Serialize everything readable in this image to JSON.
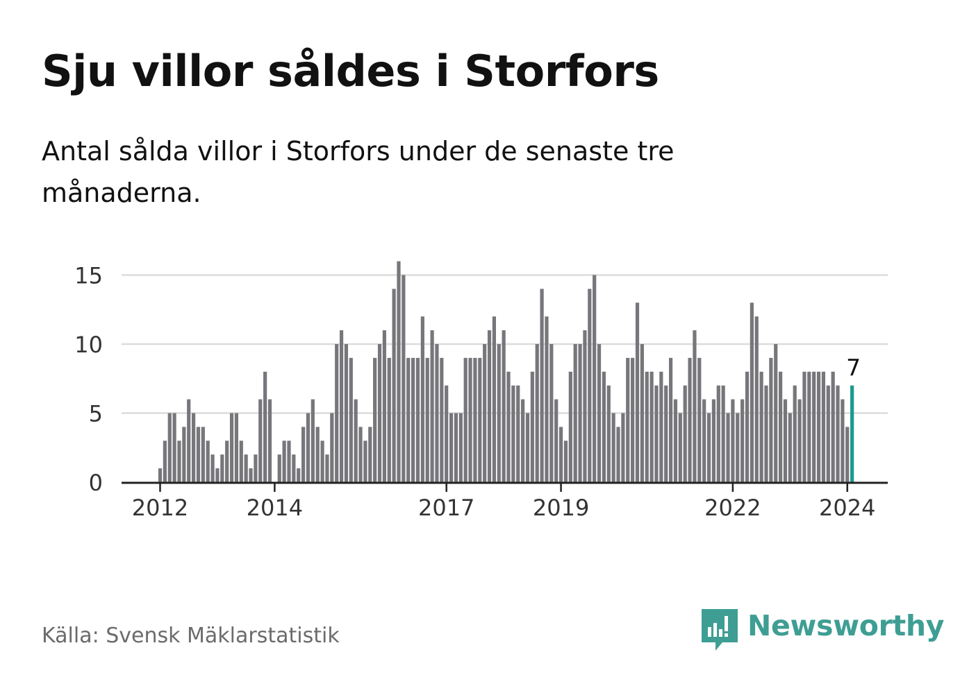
{
  "title": "Sju villor såldes i Storfors",
  "subtitle": "Antal sålda villor i Storfors under de senaste tre månaderna.",
  "source": "Källa: Svensk Mäklarstatistik",
  "brand": {
    "name": "Newsworthy",
    "icon": "newsworthy-logo-icon",
    "color": "#3e9e93"
  },
  "colors": {
    "bar": "#77767b",
    "highlight": "#1d9a8c",
    "grid": "#dcdcdc",
    "axis": "#222222"
  },
  "chart_data": {
    "type": "bar",
    "title": "Sju villor såldes i Storfors",
    "xlabel": "",
    "ylabel": "",
    "ylim": [
      0,
      16
    ],
    "yticks": [
      0,
      5,
      10,
      15
    ],
    "xticks": [
      {
        "label": "2012",
        "index": 0
      },
      {
        "label": "2014",
        "index": 24
      },
      {
        "label": "2017",
        "index": 60
      },
      {
        "label": "2019",
        "index": 84
      },
      {
        "label": "2022",
        "index": 120
      },
      {
        "label": "2024",
        "index": 144
      }
    ],
    "first_period": "2012-01",
    "values": [
      1,
      3,
      5,
      5,
      3,
      4,
      6,
      5,
      4,
      4,
      3,
      2,
      1,
      2,
      3,
      5,
      5,
      3,
      2,
      1,
      2,
      6,
      8,
      6,
      0,
      2,
      3,
      3,
      2,
      1,
      4,
      5,
      6,
      4,
      3,
      2,
      5,
      10,
      11,
      10,
      9,
      6,
      4,
      3,
      4,
      9,
      10,
      11,
      9,
      14,
      16,
      15,
      9,
      9,
      9,
      12,
      9,
      11,
      10,
      9,
      7,
      5,
      5,
      5,
      9,
      9,
      9,
      9,
      10,
      11,
      12,
      10,
      11,
      8,
      7,
      7,
      6,
      5,
      8,
      10,
      14,
      12,
      10,
      6,
      4,
      3,
      8,
      10,
      10,
      11,
      14,
      15,
      10,
      8,
      7,
      5,
      4,
      5,
      9,
      9,
      13,
      10,
      8,
      8,
      7,
      8,
      7,
      9,
      6,
      5,
      7,
      9,
      11,
      9,
      6,
      5,
      6,
      7,
      7,
      5,
      6,
      5,
      6,
      8,
      13,
      12,
      8,
      7,
      9,
      10,
      8,
      6,
      5,
      7,
      6,
      8,
      8,
      8,
      8,
      8,
      7,
      8,
      7,
      6,
      4,
      7
    ],
    "highlight_index": 145,
    "highlight_label": "7"
  }
}
